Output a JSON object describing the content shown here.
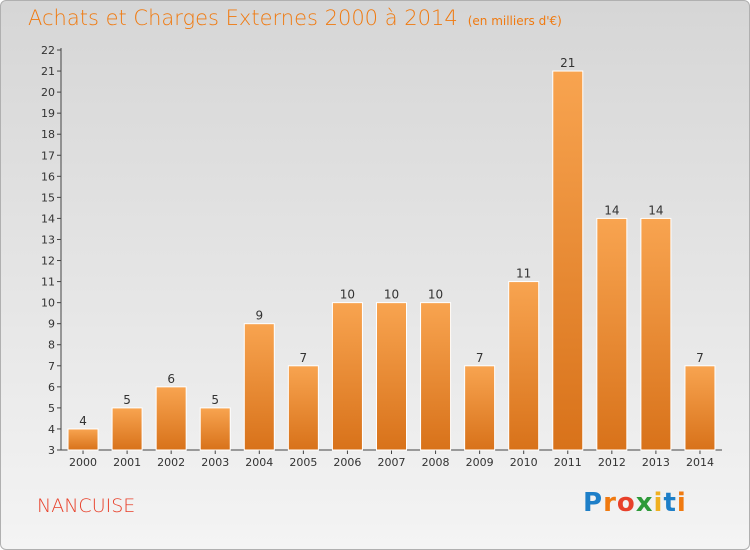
{
  "header": {
    "title": "Achats et Charges Externes 2000 à 2014",
    "unit_note": "(en milliers d'€)"
  },
  "footer": {
    "place": "NANCUISE",
    "brand": [
      "P",
      "r",
      "o",
      "x",
      "i",
      "t",
      "i"
    ]
  },
  "colors": {
    "title": "#f07a10",
    "place": "#e8402a",
    "bar_top": "#f8a450",
    "bar_bottom": "#d8721a",
    "brand": [
      "#1e7fc8",
      "#f07a10",
      "#e8402a",
      "#2e9a3a",
      "#f0b020",
      "#1e7fc8",
      "#f07a10"
    ]
  },
  "chart_data": {
    "type": "bar",
    "title": "Achats et Charges Externes 2000 à 2014",
    "subtitle": "(en milliers d'€)",
    "categories": [
      "2000",
      "2001",
      "2002",
      "2003",
      "2004",
      "2005",
      "2006",
      "2007",
      "2008",
      "2009",
      "2010",
      "2011",
      "2012",
      "2013",
      "2014"
    ],
    "values": [
      4,
      5,
      6,
      5,
      9,
      7,
      10,
      10,
      10,
      7,
      11,
      21,
      14,
      14,
      7
    ],
    "ylim": [
      3,
      22
    ],
    "yticks": [
      3,
      4,
      5,
      6,
      7,
      8,
      9,
      10,
      11,
      12,
      13,
      14,
      15,
      16,
      17,
      18,
      19,
      20,
      21,
      22
    ],
    "grid": false,
    "data_labels": true
  }
}
